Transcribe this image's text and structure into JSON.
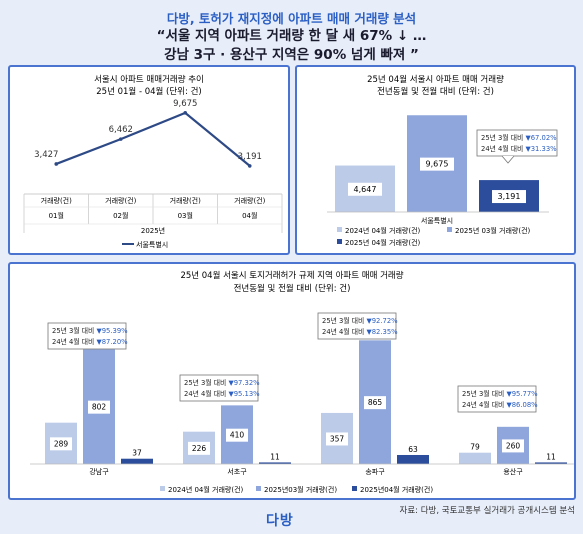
{
  "header": {
    "line1": "다방, 토허가 재지정에 아파트 매매 거래량 분석",
    "line2": "“서울 지역 아파트 거래량 한 달 새 67% ↓ …",
    "line3": "강남 3구 · 용산구 지역은 90% 넘게 빠져 ”"
  },
  "footer": {
    "source": "자료: 다방, 국토교통부 실거래가 공개시스템 분석",
    "logo": "다방"
  },
  "chart_data": [
    {
      "type": "line",
      "title": "서울시 아파트 매매거래량 추이",
      "subtitle": "25년 01월 - 04월 (단위: 건)",
      "row_label": "거래량(건)",
      "categories": [
        "01월",
        "02월",
        "03월",
        "04월"
      ],
      "group_label": "2025년",
      "series": [
        {
          "name": "서울특별시",
          "values": [
            3427,
            6462,
            9675,
            3191
          ],
          "labels": [
            "3,427",
            "6,462",
            "9,675",
            "3,191"
          ],
          "color": "#2e4a86"
        }
      ],
      "ylim": [
        0,
        11000
      ],
      "legend": "bottom"
    },
    {
      "type": "bar",
      "title": "25년 04월 서울시 아파트 매매 거래량",
      "subtitle": "전년동월 및 전월 대비 (단위: 건)",
      "categories": [
        "서울특별시"
      ],
      "series": [
        {
          "name": "2024년 04월 거래량(건)",
          "values": [
            4647
          ],
          "labels": [
            "4,647"
          ],
          "color": "#bccbe8"
        },
        {
          "name": "2025년 03월 거래량(건)",
          "values": [
            9675
          ],
          "labels": [
            "9,675"
          ],
          "color": "#8fa6dc"
        },
        {
          "name": "2025년 04월 거래량(건)",
          "values": [
            3191
          ],
          "labels": [
            "3,191"
          ],
          "color": "#2b4d9c"
        }
      ],
      "callouts": [
        {
          "line1": "25년 3월 대비",
          "v1": "▼67.02%",
          "line2": "24년 4월 대비",
          "v2": "▼31.33%"
        }
      ],
      "ylim": [
        0,
        11000
      ],
      "legend": "bottom"
    },
    {
      "type": "bar",
      "title": "25년 04월 서울시 토지거래허가 규제 지역 아파트 매매 거래량",
      "subtitle": "전년동월 및 전월 대비 (단위: 건)",
      "categories": [
        "강남구",
        "서초구",
        "송파구",
        "용산구"
      ],
      "series": [
        {
          "name": "2024년 04월 거래량(건)",
          "values": [
            289,
            226,
            357,
            79
          ],
          "color": "#bccbe8"
        },
        {
          "name": "2025년03월 거래량(건)",
          "values": [
            802,
            410,
            865,
            260
          ],
          "color": "#8fa6dc"
        },
        {
          "name": "2025년04월 거래량(건)",
          "values": [
            37,
            11,
            63,
            11
          ],
          "color": "#2b4d9c"
        }
      ],
      "callouts": [
        {
          "line1": "25년 3월 대비",
          "v1": "▼95.39%",
          "line2": "24년 4월 대비",
          "v2": "▼87.20%"
        },
        {
          "line1": "25년 3월 대비",
          "v1": "▼97.32%",
          "line2": "24년 4월 대비",
          "v2": "▼95.13%"
        },
        {
          "line1": "25년 3월 대비",
          "v1": "▼92.72%",
          "line2": "24년 4월 대비",
          "v2": "▼82.35%"
        },
        {
          "line1": "25년 3월 대비",
          "v1": "▼95.77%",
          "line2": "24년 4월 대비",
          "v2": "▼86.08%"
        }
      ],
      "ylim": [
        0,
        1000
      ],
      "legend": "bottom"
    }
  ]
}
